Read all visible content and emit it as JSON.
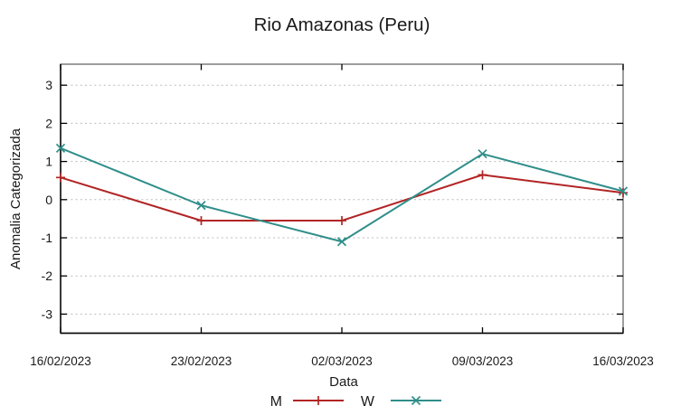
{
  "window": {
    "background": "#ffffff"
  },
  "chart_data": {
    "type": "line",
    "title": "Rio Amazonas (Peru)",
    "xlabel": "Data",
    "ylabel": "Anomalia Categorizada",
    "categories": [
      "16/02/2023",
      "23/02/2023",
      "02/03/2023",
      "09/03/2023",
      "16/03/2023"
    ],
    "yticks": [
      -3,
      -2,
      -1,
      0,
      1,
      2,
      3
    ],
    "ylim": [
      -3.5,
      3.55
    ],
    "grid": "horizontal-dashed-only",
    "legend_position": "bottom-center-below-xlabel",
    "series": [
      {
        "name": "M",
        "marker": "plus",
        "color": "#b22424",
        "values": [
          0.58,
          -0.55,
          -0.55,
          0.65,
          0.18
        ]
      },
      {
        "name": "W",
        "marker": "cross",
        "color": "#2f8e89",
        "values": [
          1.35,
          -0.15,
          -1.1,
          1.2,
          0.22
        ]
      }
    ]
  },
  "colors": {
    "grid": "#bcbcbc",
    "border": "#7d7d7d",
    "axis": "#000000",
    "text": "#1a1a1a"
  }
}
